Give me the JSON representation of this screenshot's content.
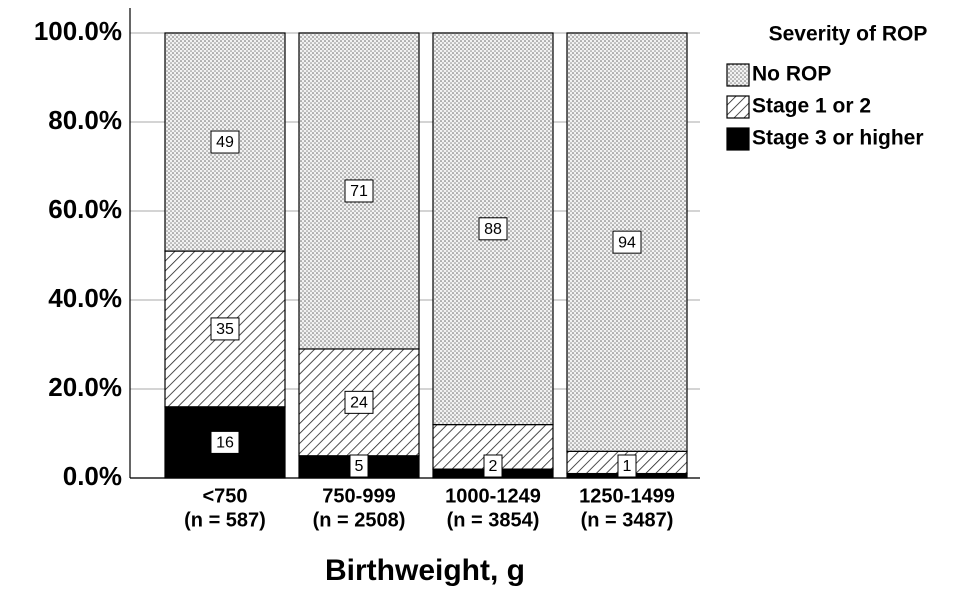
{
  "chart_data": {
    "type": "stacked_bar",
    "categories": [
      [
        "<750",
        "(n = 587)"
      ],
      [
        "750-999",
        "(n = 2508)"
      ],
      [
        "1000-1249",
        "(n = 3854)"
      ],
      [
        "1250-1499",
        "(n = 3487)"
      ]
    ],
    "series": [
      {
        "name": "No ROP",
        "color": "#ffffff",
        "pattern": "dots",
        "values": [
          49,
          71,
          88,
          94
        ],
        "value_labels": [
          "49",
          "71",
          "88",
          "94"
        ]
      },
      {
        "name": "Stage 1 or 2",
        "color": "#ffffff",
        "pattern": "hatch",
        "values": [
          35,
          24,
          10,
          5
        ],
        "value_labels": [
          "35",
          "24",
          null,
          null
        ]
      },
      {
        "name": "Stage 3 or higher",
        "color": "#000000",
        "pattern": "solid",
        "values": [
          16,
          5,
          2,
          1
        ],
        "value_labels": [
          "16",
          "5",
          "2",
          "1"
        ]
      }
    ],
    "legend_title": "Severity of ROP",
    "legend": "right",
    "x_label": "Birthweight, g",
    "ylim": [
      0,
      100
    ],
    "yticks": [
      {
        "value": 0,
        "label": "0.0%"
      },
      {
        "value": 20,
        "label": "20.0%"
      },
      {
        "value": 40,
        "label": "40.0%"
      },
      {
        "value": 60,
        "label": "60.0%"
      },
      {
        "value": 80,
        "label": "80.0%"
      },
      {
        "value": 100,
        "label": "100.0%"
      }
    ],
    "grid": true
  }
}
